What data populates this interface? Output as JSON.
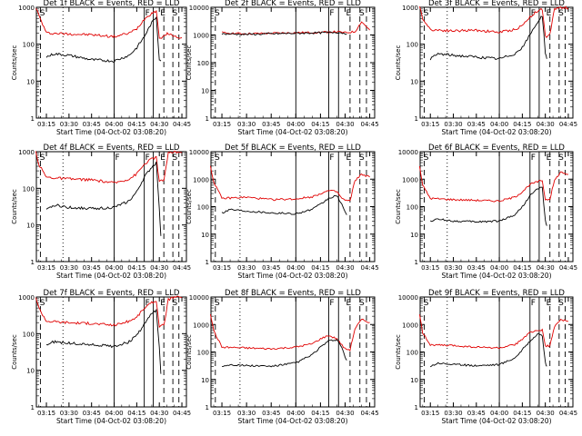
{
  "chart_data": [
    {
      "type": "line",
      "title": "Det 1f BLACK = Events, RED = LLD",
      "xlabel": "Start Time (04-Oct-02 03:08:20)",
      "ylabel": "Counts/sec",
      "yscale": "log",
      "ylim": [
        1,
        1000
      ],
      "yticks": [
        "1",
        "10",
        "100",
        "1000"
      ],
      "xticks": [
        "03:15",
        "03:30",
        "03:45",
        "04:00",
        "04:15",
        "04:30",
        "04:45"
      ],
      "markers": [
        "S",
        "F",
        "E",
        "S"
      ],
      "series": [
        {
          "name": "LLD",
          "color": "#e00000",
          "x": [
            "03:08",
            "03:10",
            "03:15",
            "03:30",
            "03:45",
            "04:00",
            "04:10",
            "04:15",
            "04:20",
            "04:25",
            "04:28",
            "04:30",
            "04:33",
            "04:36",
            "04:40",
            "04:45"
          ],
          "values": [
            1000,
            600,
            200,
            190,
            180,
            160,
            200,
            260,
            480,
            700,
            800,
            150,
            160,
            200,
            160,
            150
          ]
        },
        {
          "name": "Events",
          "color": "#000000",
          "x": [
            "03:15",
            "03:20",
            "03:30",
            "03:45",
            "04:00",
            "04:10",
            "04:15",
            "04:20",
            "04:25",
            "04:28",
            "04:30",
            "04:31"
          ],
          "values": [
            45,
            55,
            50,
            38,
            35,
            50,
            80,
            160,
            380,
            550,
            40,
            35
          ]
        }
      ]
    },
    {
      "type": "line",
      "title": "Det 2f BLACK = Events, RED = LLD",
      "xlabel": "Start Time (04-Oct-02 03:08:20)",
      "ylabel": "Counts/sec",
      "yscale": "log",
      "ylim": [
        1,
        10000
      ],
      "yticks": [
        "1",
        "10",
        "100",
        "1000",
        "10000"
      ],
      "xticks": [
        "03:15",
        "03:30",
        "03:45",
        "04:00",
        "04:15",
        "04:30",
        "04:45"
      ],
      "markers": [
        "S",
        "F",
        "E",
        "S"
      ],
      "series": [
        {
          "name": "LLD",
          "color": "#e00000",
          "x": [
            "03:15",
            "03:30",
            "03:45",
            "04:00",
            "04:15",
            "04:25",
            "04:30",
            "04:36",
            "04:40",
            "04:45"
          ],
          "values": [
            1200,
            1100,
            1150,
            1200,
            1250,
            1300,
            1200,
            1300,
            3000,
            1500
          ]
        },
        {
          "name": "Events",
          "color": "#000000",
          "x": [
            "03:15",
            "03:30",
            "03:45",
            "04:00",
            "04:15",
            "04:25",
            "04:30",
            "04:31"
          ],
          "values": [
            1100,
            1050,
            1100,
            1150,
            1200,
            1250,
            1150,
            1100
          ]
        }
      ]
    },
    {
      "type": "line",
      "title": "Det 3f BLACK = Events, RED = LLD",
      "xlabel": "Start Time (04-Oct-02 03:08:20)",
      "ylabel": "Counts/sec",
      "yscale": "log",
      "ylim": [
        1,
        1000
      ],
      "yticks": [
        "1",
        "10",
        "100",
        "1000"
      ],
      "xticks": [
        "03:15",
        "03:30",
        "03:45",
        "04:00",
        "04:15",
        "04:30",
        "04:45"
      ],
      "markers": [
        "S",
        "F",
        "E",
        "S"
      ],
      "series": [
        {
          "name": "LLD",
          "color": "#e00000",
          "x": [
            "03:08",
            "03:10",
            "03:15",
            "03:30",
            "03:45",
            "04:00",
            "04:10",
            "04:15",
            "04:20",
            "04:25",
            "04:28",
            "04:30",
            "04:33",
            "04:36",
            "04:40",
            "04:45"
          ],
          "values": [
            1000,
            500,
            250,
            230,
            240,
            210,
            250,
            320,
            550,
            800,
            900,
            160,
            180,
            900,
            1000,
            950
          ]
        },
        {
          "name": "Events",
          "color": "#000000",
          "x": [
            "03:15",
            "03:20",
            "03:30",
            "03:45",
            "04:00",
            "04:10",
            "04:15",
            "04:20",
            "04:25",
            "04:28",
            "04:30",
            "04:31"
          ],
          "values": [
            40,
            55,
            50,
            45,
            40,
            55,
            80,
            180,
            400,
            600,
            60,
            40
          ]
        }
      ]
    },
    {
      "type": "line",
      "title": "Det 4f BLACK = Events, RED = LLD",
      "xlabel": "Start Time (04-Oct-02 03:08:20)",
      "ylabel": "Counts/sec",
      "yscale": "log",
      "ylim": [
        1,
        1000
      ],
      "yticks": [
        "1",
        "10",
        "100",
        "1000"
      ],
      "xticks": [
        "03:15",
        "03:30",
        "03:45",
        "04:00",
        "04:15",
        "04:30",
        "04:45"
      ],
      "markers": [
        "S",
        "F",
        "F",
        "E",
        "S"
      ],
      "series": [
        {
          "name": "LLD",
          "color": "#e00000",
          "x": [
            "03:08",
            "03:10",
            "03:15",
            "03:30",
            "03:45",
            "04:00",
            "04:10",
            "04:15",
            "04:20",
            "04:25",
            "04:28",
            "04:30",
            "04:33",
            "04:36",
            "04:40",
            "04:45"
          ],
          "values": [
            1000,
            450,
            200,
            180,
            170,
            140,
            180,
            250,
            450,
            650,
            700,
            150,
            170,
            900,
            1000,
            950
          ]
        },
        {
          "name": "Events",
          "color": "#000000",
          "x": [
            "03:15",
            "03:20",
            "03:30",
            "03:45",
            "04:00",
            "04:10",
            "04:15",
            "04:20",
            "04:25",
            "04:28",
            "04:30",
            "04:31"
          ],
          "values": [
            25,
            35,
            30,
            28,
            30,
            45,
            80,
            200,
            380,
            500,
            30,
            5
          ]
        }
      ]
    },
    {
      "type": "line",
      "title": "Det 5f BLACK = Events, RED = LLD",
      "xlabel": "Start Time (04-Oct-02 03:08:20)",
      "ylabel": "Counts/sec",
      "yscale": "log",
      "ylim": [
        1,
        10000
      ],
      "yticks": [
        "1",
        "10",
        "100",
        "1000",
        "10000"
      ],
      "xticks": [
        "03:15",
        "03:30",
        "03:45",
        "04:00",
        "04:15",
        "04:30",
        "04:45"
      ],
      "markers": [
        "S",
        "F",
        "E",
        "S"
      ],
      "series": [
        {
          "name": "LLD",
          "color": "#e00000",
          "x": [
            "03:08",
            "03:10",
            "03:15",
            "03:30",
            "03:45",
            "04:00",
            "04:10",
            "04:15",
            "04:20",
            "04:25",
            "04:28",
            "04:30",
            "04:33",
            "04:36",
            "04:40",
            "04:45"
          ],
          "values": [
            3000,
            800,
            200,
            220,
            180,
            190,
            230,
            300,
            380,
            350,
            200,
            170,
            160,
            900,
            1500,
            1200
          ]
        },
        {
          "name": "Events",
          "color": "#000000",
          "x": [
            "03:15",
            "03:20",
            "03:30",
            "03:45",
            "04:00",
            "04:10",
            "04:15",
            "04:20",
            "04:25",
            "04:28",
            "04:30",
            "04:31"
          ],
          "values": [
            60,
            80,
            70,
            60,
            55,
            80,
            120,
            200,
            250,
            120,
            60,
            50
          ]
        }
      ]
    },
    {
      "type": "line",
      "title": "Det 6f BLACK = Events, RED = LLD",
      "xlabel": "Start Time (04-Oct-02 03:08:20)",
      "ylabel": "Counts/sec",
      "yscale": "log",
      "ylim": [
        1,
        10000
      ],
      "yticks": [
        "1",
        "10",
        "100",
        "1000",
        "10000"
      ],
      "xticks": [
        "03:15",
        "03:30",
        "03:45",
        "04:00",
        "04:15",
        "04:30",
        "04:45"
      ],
      "markers": [
        "S",
        "F",
        "E",
        "S"
      ],
      "series": [
        {
          "name": "LLD",
          "color": "#e00000",
          "x": [
            "03:08",
            "03:10",
            "03:15",
            "03:30",
            "03:45",
            "04:00",
            "04:10",
            "04:15",
            "04:20",
            "04:25",
            "04:28",
            "04:30",
            "04:33",
            "04:36",
            "04:40",
            "04:45"
          ],
          "values": [
            3000,
            600,
            200,
            180,
            170,
            160,
            220,
            350,
            650,
            800,
            900,
            180,
            190,
            900,
            1800,
            1500
          ]
        },
        {
          "name": "Events",
          "color": "#000000",
          "x": [
            "03:15",
            "03:20",
            "03:30",
            "03:45",
            "04:00",
            "04:10",
            "04:15",
            "04:20",
            "04:25",
            "04:28",
            "04:30",
            "04:31"
          ],
          "values": [
            30,
            35,
            30,
            28,
            30,
            50,
            100,
            250,
            450,
            500,
            30,
            20
          ]
        }
      ]
    },
    {
      "type": "line",
      "title": "Det 7f BLACK = Events, RED = LLD",
      "xlabel": "Start Time (04-Oct-02 03:08:20)",
      "ylabel": "Counts/sec",
      "yscale": "log",
      "ylim": [
        1,
        1000
      ],
      "yticks": [
        "1",
        "10",
        "100",
        "1000"
      ],
      "xticks": [
        "03:15",
        "03:30",
        "03:45",
        "04:00",
        "04:15",
        "04:30",
        "04:45"
      ],
      "markers": [
        "S",
        "F",
        "E",
        "S"
      ],
      "series": [
        {
          "name": "LLD",
          "color": "#e00000",
          "x": [
            "03:08",
            "03:10",
            "03:15",
            "03:30",
            "03:45",
            "04:00",
            "04:10",
            "04:15",
            "04:20",
            "04:25",
            "04:28",
            "04:30",
            "04:33",
            "04:36",
            "04:40",
            "04:45"
          ],
          "values": [
            1000,
            500,
            220,
            200,
            190,
            170,
            220,
            280,
            500,
            700,
            800,
            160,
            170,
            850,
            1000,
            950
          ]
        },
        {
          "name": "Events",
          "color": "#000000",
          "x": [
            "03:15",
            "03:20",
            "03:30",
            "03:45",
            "04:00",
            "04:10",
            "04:15",
            "04:20",
            "04:25",
            "04:28",
            "04:30",
            "04:31"
          ],
          "values": [
            50,
            60,
            55,
            50,
            45,
            60,
            90,
            180,
            350,
            450,
            40,
            8
          ]
        }
      ]
    },
    {
      "type": "line",
      "title": "Det 8f BLACK = Events, RED = LLD",
      "xlabel": "Start Time (04-Oct-02 03:08:20)",
      "ylabel": "Counts/sec",
      "yscale": "log",
      "ylim": [
        1,
        10000
      ],
      "yticks": [
        "1",
        "10",
        "100",
        "1000",
        "10000"
      ],
      "xticks": [
        "03:15",
        "03:30",
        "03:45",
        "04:00",
        "04:15",
        "04:30",
        "04:45"
      ],
      "markers": [
        "S",
        "F",
        "E",
        "S"
      ],
      "series": [
        {
          "name": "LLD",
          "color": "#e00000",
          "x": [
            "03:08",
            "03:10",
            "03:15",
            "03:30",
            "03:45",
            "04:00",
            "04:10",
            "04:15",
            "04:20",
            "04:25",
            "04:28",
            "04:30",
            "04:33",
            "04:36",
            "04:40",
            "04:45"
          ],
          "values": [
            2500,
            600,
            150,
            140,
            130,
            150,
            200,
            300,
            400,
            300,
            180,
            130,
            120,
            700,
            1500,
            1200
          ]
        },
        {
          "name": "Events",
          "color": "#000000",
          "x": [
            "03:15",
            "03:20",
            "03:30",
            "03:45",
            "04:00",
            "04:10",
            "04:15",
            "04:20",
            "04:25",
            "04:28",
            "04:30",
            "04:31"
          ],
          "values": [
            30,
            35,
            32,
            30,
            40,
            80,
            150,
            250,
            280,
            150,
            60,
            50
          ]
        }
      ]
    },
    {
      "type": "line",
      "title": "Det 9f BLACK = Events, RED = LLD",
      "xlabel": "Start Time (04-Oct-02 03:08:20)",
      "ylabel": "Counts/sec",
      "yscale": "log",
      "ylim": [
        1,
        10000
      ],
      "yticks": [
        "1",
        "10",
        "100",
        "1000",
        "10000"
      ],
      "xticks": [
        "03:15",
        "03:30",
        "03:45",
        "04:00",
        "04:15",
        "04:30",
        "04:45"
      ],
      "markers": [
        "S",
        "F",
        "E",
        "S"
      ],
      "series": [
        {
          "name": "LLD",
          "color": "#e00000",
          "x": [
            "03:08",
            "03:10",
            "03:15",
            "03:30",
            "03:45",
            "04:00",
            "04:10",
            "04:15",
            "04:20",
            "04:25",
            "04:28",
            "04:30",
            "04:33",
            "04:36",
            "04:40",
            "04:45"
          ],
          "values": [
            2500,
            500,
            180,
            170,
            150,
            140,
            180,
            300,
            500,
            600,
            650,
            160,
            170,
            800,
            1500,
            1300
          ]
        },
        {
          "name": "Events",
          "color": "#000000",
          "x": [
            "03:15",
            "03:20",
            "03:30",
            "03:45",
            "04:00",
            "04:10",
            "04:15",
            "04:20",
            "04:25",
            "04:28",
            "04:30",
            "04:31"
          ],
          "values": [
            30,
            40,
            35,
            32,
            35,
            60,
            120,
            250,
            450,
            400,
            40,
            30
          ]
        }
      ]
    }
  ]
}
